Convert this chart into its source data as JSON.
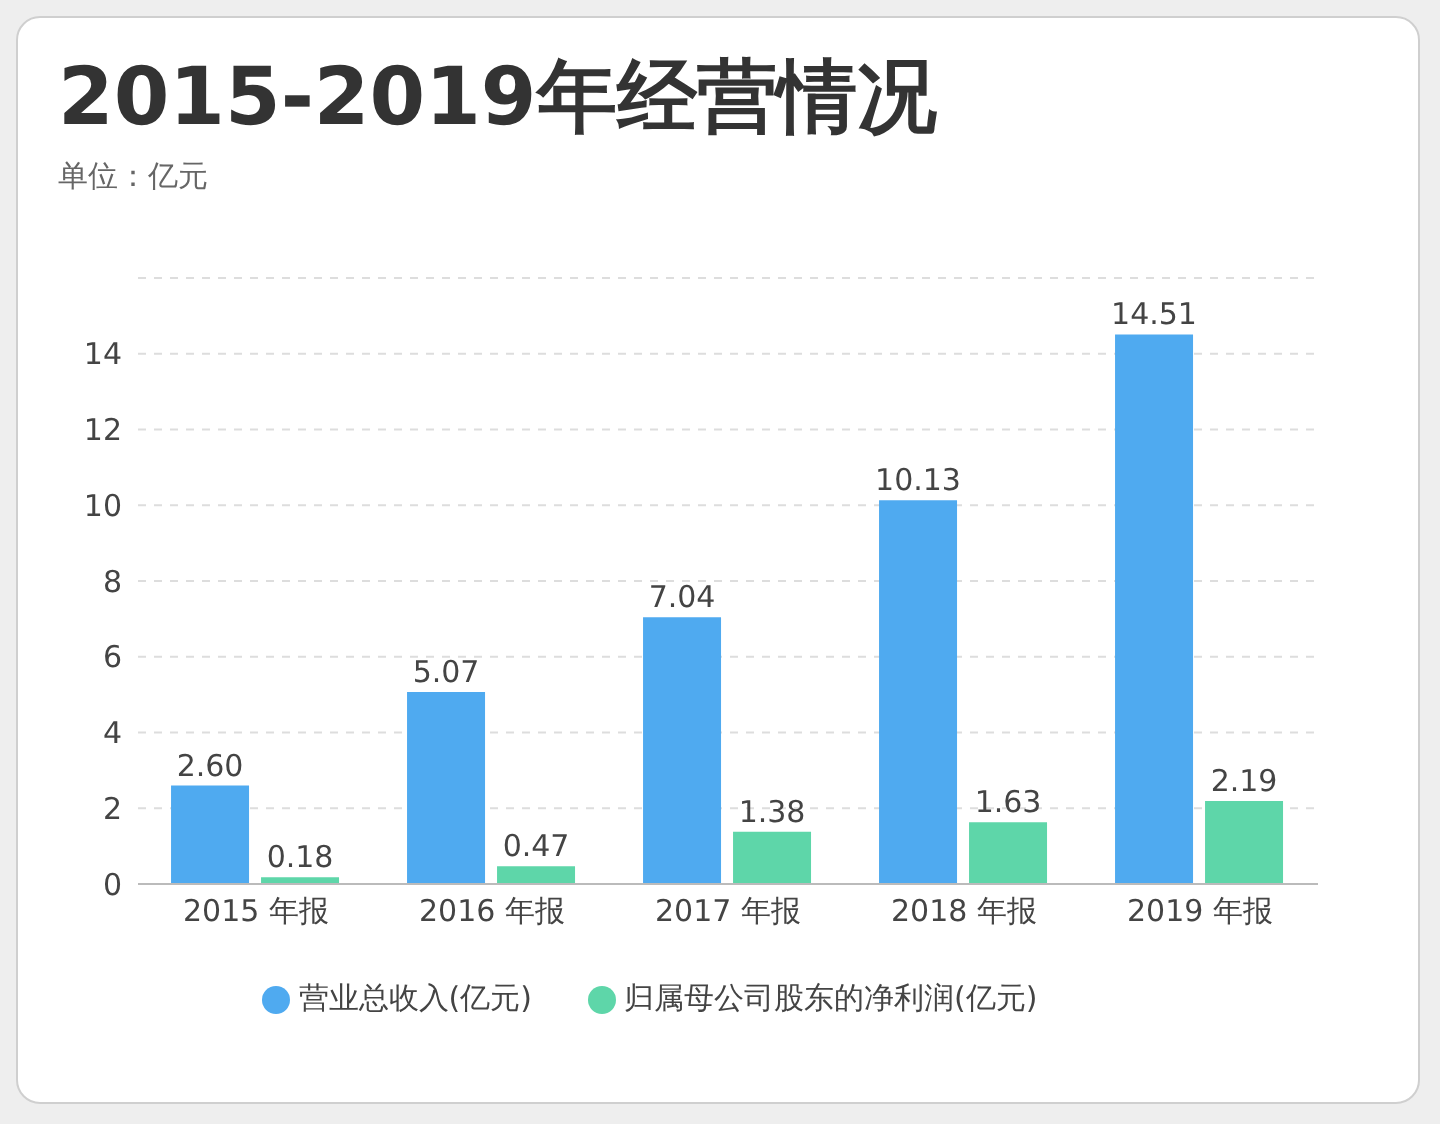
{
  "chart_data": {
    "type": "bar",
    "title": "2015-2019年经营情况",
    "subtitle": "单位：亿元",
    "categories": [
      "2015 年报",
      "2016 年报",
      "2017 年报",
      "2018 年报",
      "2019 年报"
    ],
    "series": [
      {
        "name": "营业总收入(亿元)",
        "color": "#4faaf0",
        "values": [
          2.6,
          5.07,
          7.04,
          10.13,
          14.51
        ],
        "value_labels": [
          "2.60",
          "5.07",
          "7.04",
          "10.13",
          "14.51"
        ]
      },
      {
        "name": "归属母公司股东的净利润(亿元)",
        "color": "#5ed6a9",
        "values": [
          0.18,
          0.47,
          1.38,
          1.63,
          2.19
        ],
        "value_labels": [
          "0.18",
          "0.47",
          "1.38",
          "1.63",
          "2.19"
        ]
      }
    ],
    "ylim": [
      0,
      16
    ],
    "yticks": [
      0,
      2,
      4,
      6,
      8,
      10,
      12,
      14
    ],
    "grid": "y",
    "legend": "bottom"
  }
}
